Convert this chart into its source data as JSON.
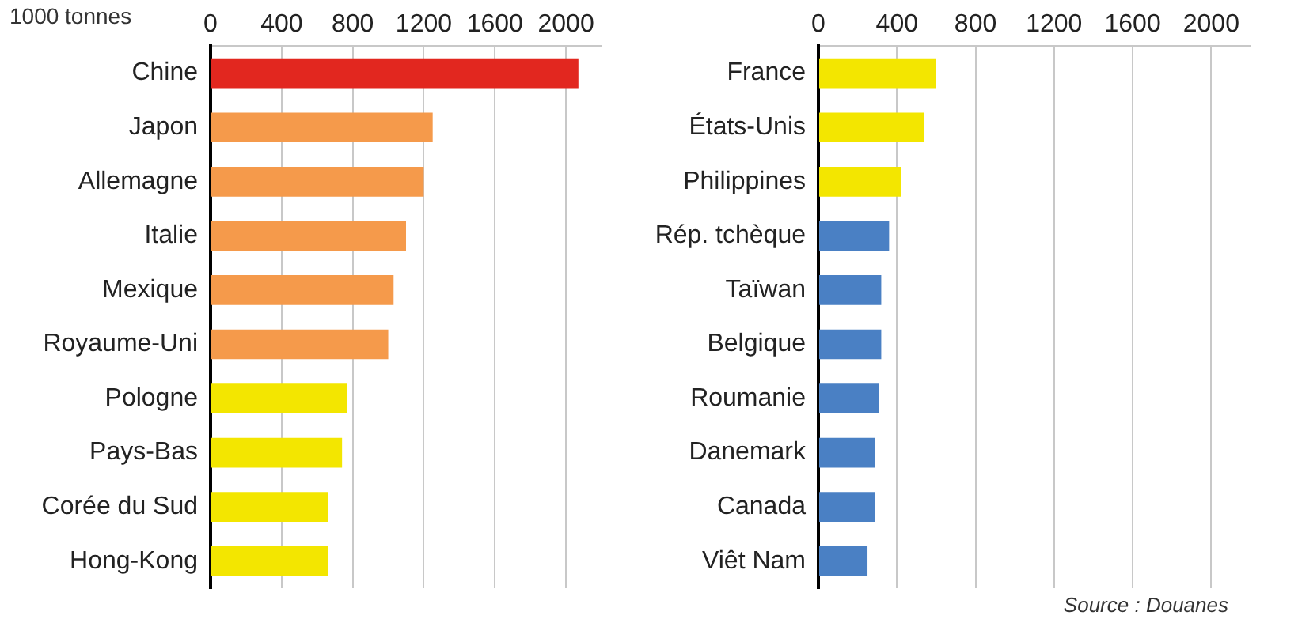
{
  "chart_data": [
    {
      "type": "bar",
      "orientation": "horizontal",
      "xlabel": "1000 tonnes",
      "categories": [
        "Chine",
        "Japon",
        "Allemagne",
        "Italie",
        "Mexique",
        "Royaume-Uni",
        "Pologne",
        "Pays-Bas",
        "Corée du Sud",
        "Hong-Kong"
      ],
      "values": [
        2070,
        1250,
        1200,
        1100,
        1030,
        1000,
        770,
        740,
        660,
        660
      ],
      "colors": [
        "#e2271f",
        "#f59a4b",
        "#f59a4b",
        "#f59a4b",
        "#f59a4b",
        "#f59a4b",
        "#f3e600",
        "#f3e600",
        "#f3e600",
        "#f3e600"
      ],
      "xlim": [
        0,
        2200
      ],
      "xticks": [
        0,
        400,
        800,
        1200,
        1600,
        2000
      ],
      "grid": "x"
    },
    {
      "type": "bar",
      "orientation": "horizontal",
      "categories": [
        "France",
        "États-Unis",
        "Philippines",
        "Rép. tchèque",
        "Taïwan",
        "Belgique",
        "Roumanie",
        "Danemark",
        "Canada",
        "Viêt Nam"
      ],
      "values": [
        600,
        540,
        420,
        360,
        320,
        320,
        310,
        290,
        290,
        250
      ],
      "colors": [
        "#f3e600",
        "#f3e600",
        "#f3e600",
        "#4a80c4",
        "#4a80c4",
        "#4a80c4",
        "#4a80c4",
        "#4a80c4",
        "#4a80c4",
        "#4a80c4"
      ],
      "xlim": [
        0,
        2200
      ],
      "xticks": [
        0,
        400,
        800,
        1200,
        1600,
        2000
      ],
      "grid": "x",
      "annotations": [
        "Source : Douanes"
      ]
    }
  ]
}
